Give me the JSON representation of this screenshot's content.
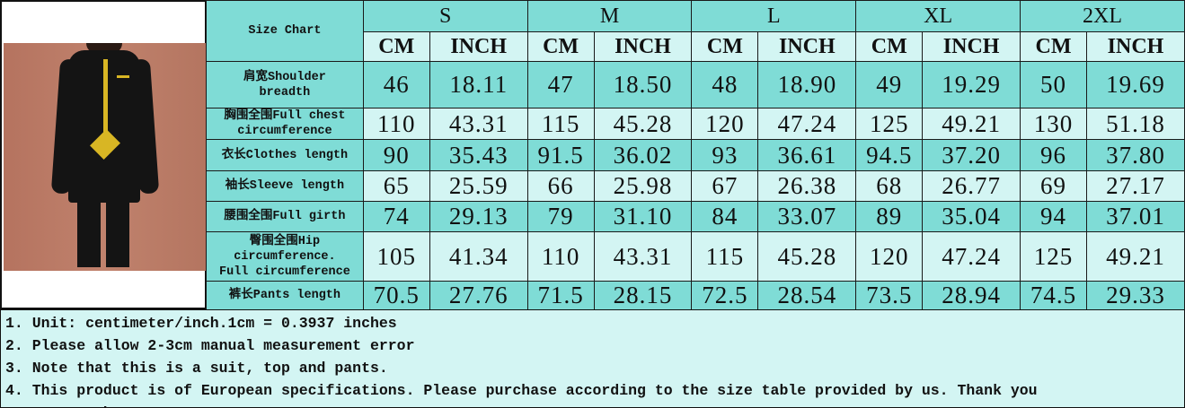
{
  "corner_label": "Size Chart",
  "sizes": [
    "S",
    "M",
    "L",
    "XL",
    "2XL"
  ],
  "units": [
    "CM",
    "INCH"
  ],
  "rows": [
    {
      "label": [
        "肩宽Shoulder",
        "breadth"
      ],
      "values": [
        "46",
        "18.11",
        "47",
        "18.50",
        "48",
        "18.90",
        "49",
        "19.29",
        "50",
        "19.69"
      ]
    },
    {
      "label": [
        "胸围全围Full chest",
        "circumference"
      ],
      "values": [
        "110",
        "43.31",
        "115",
        "45.28",
        "120",
        "47.24",
        "125",
        "49.21",
        "130",
        "51.18"
      ]
    },
    {
      "label": [
        "衣长Clothes length"
      ],
      "values": [
        "90",
        "35.43",
        "91.5",
        "36.02",
        "93",
        "36.61",
        "94.5",
        "37.20",
        "96",
        "37.80"
      ]
    },
    {
      "label": [
        "袖长Sleeve length"
      ],
      "values": [
        "65",
        "25.59",
        "66",
        "25.98",
        "67",
        "26.38",
        "68",
        "26.77",
        "69",
        "27.17"
      ]
    },
    {
      "label": [
        "腰围全围Full girth"
      ],
      "values": [
        "74",
        "29.13",
        "79",
        "31.10",
        "84",
        "33.07",
        "89",
        "35.04",
        "94",
        "37.01"
      ]
    },
    {
      "label": [
        "臀围全围Hip",
        "circumference.",
        "Full circumference"
      ],
      "values": [
        "105",
        "41.34",
        "110",
        "43.31",
        "115",
        "45.28",
        "120",
        "47.24",
        "125",
        "49.21"
      ]
    },
    {
      "label": [
        "裤长Pants length"
      ],
      "values": [
        "70.5",
        "27.76",
        "71.5",
        "28.15",
        "72.5",
        "28.54",
        "73.5",
        "28.94",
        "74.5",
        "29.33"
      ]
    }
  ],
  "notes": [
    "1. Unit: centimeter/inch.1cm = 0.3937 inches",
    "2. Please allow 2-3cm manual measurement error",
    "3. Note that this is a suit, top and pants.",
    "4. This product is of European specifications. Please purchase according to the size table provided by us. Thank you",
    "   very much."
  ],
  "colors": {
    "header": "#7fdcd6",
    "light": "#d3f5f3",
    "photo_bg": "#b97c68"
  }
}
